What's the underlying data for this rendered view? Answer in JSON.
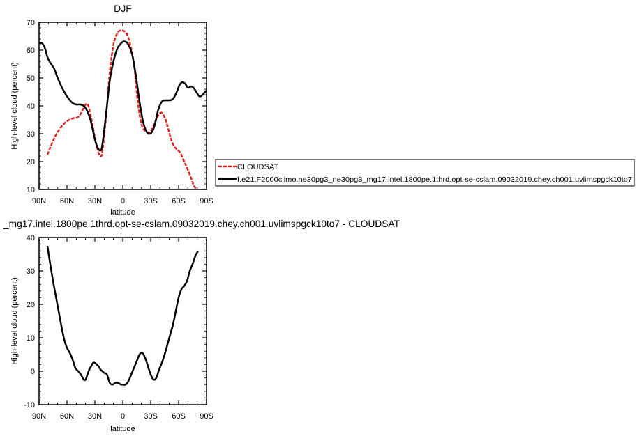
{
  "chart_data": [
    {
      "type": "line",
      "title": "DJF",
      "xlabel": "latitude",
      "ylabel": "High-level cloud (percent)",
      "xlim": [
        90,
        -90
      ],
      "ylim": [
        10,
        70
      ],
      "xticks": [
        90,
        60,
        30,
        0,
        -30,
        -60,
        -90
      ],
      "xtick_labels": [
        "90N",
        "60N",
        "30N",
        "0",
        "30S",
        "60S",
        "90S"
      ],
      "yticks": [
        10,
        20,
        30,
        40,
        50,
        60,
        70
      ],
      "ytick_labels": [
        "10",
        "20",
        "30",
        "40",
        "50",
        "60",
        "70"
      ],
      "legend_position": "right",
      "series": [
        {
          "name": "CLOUDSAT",
          "color": "#e8211c",
          "dash": "dashed",
          "x": [
            81,
            78,
            72,
            66,
            60,
            54,
            48,
            44,
            40,
            37,
            33,
            29,
            26,
            24,
            22,
            18,
            14,
            10,
            6,
            3,
            0,
            -4,
            -8,
            -12,
            -16,
            -20,
            -24,
            -28,
            -32,
            -35,
            -38,
            -42,
            -46,
            -49,
            -52,
            -55,
            -58,
            -62,
            -66,
            -70,
            -74,
            -77,
            -81
          ],
          "y": [
            22.5,
            25,
            29.5,
            32.5,
            34.5,
            35.5,
            36,
            38,
            40.5,
            40,
            34,
            27,
            23,
            22,
            23.5,
            36,
            52,
            62,
            66,
            67,
            67,
            66,
            62,
            55,
            42,
            33.5,
            31,
            30.5,
            32,
            34.5,
            36.5,
            37.5,
            35,
            31.5,
            28,
            25.5,
            24.5,
            23,
            20,
            17,
            13.5,
            11,
            9.5
          ]
        },
        {
          "name": "f.e21.F2000climo.ne30pg3_ne30pg3_mg17.intel.1800pe.1thrd.opt-se-cslam.09032019.chey.ch001.uvlimspgck10to7",
          "color": "#000000",
          "dash": "solid",
          "x": [
            90,
            87,
            84,
            81,
            78,
            74,
            70,
            66,
            62,
            58,
            54,
            50,
            46,
            42,
            38,
            34,
            30,
            27,
            24,
            22,
            18,
            14,
            10,
            6,
            3,
            0,
            -3,
            -6,
            -10,
            -14,
            -18,
            -22,
            -26,
            -29,
            -32,
            -35,
            -38,
            -42,
            -46,
            -50,
            -54,
            -58,
            -61,
            -64,
            -67,
            -70,
            -73,
            -76,
            -79,
            -82,
            -84,
            -87,
            -90
          ],
          "y": [
            62.5,
            62.5,
            61,
            57.5,
            55.5,
            53.5,
            50,
            47,
            44.5,
            42.5,
            41,
            40.5,
            40.5,
            40,
            38,
            34,
            28,
            25,
            24,
            26,
            37,
            49,
            56,
            60.5,
            62,
            63,
            63,
            62,
            58.5,
            51,
            41.5,
            34,
            30.5,
            30,
            31,
            34,
            38.5,
            41.5,
            42,
            42,
            42.5,
            45,
            47.5,
            48.5,
            48,
            46.5,
            47,
            46.5,
            45,
            43.5,
            43.5,
            44.5,
            45.5
          ]
        }
      ]
    },
    {
      "type": "line",
      "title": "_mg17.intel.1800pe.1thrd.opt-se-cslam.09032019.chey.ch001.uvlimspgck10to7 - CLOUDSAT",
      "xlabel": "latitude",
      "ylabel": "High-level cloud (percent)",
      "xlim": [
        90,
        -90
      ],
      "ylim": [
        -10,
        40
      ],
      "xticks": [
        90,
        60,
        30,
        0,
        -30,
        -60,
        -90
      ],
      "xtick_labels": [
        "90N",
        "60N",
        "30N",
        "0",
        "30S",
        "60S",
        "90S"
      ],
      "yticks": [
        -10,
        0,
        10,
        20,
        30,
        40
      ],
      "ytick_labels": [
        "-10",
        "0",
        "10",
        "20",
        "30",
        "40"
      ],
      "series": [
        {
          "color": "#000000",
          "dash": "solid",
          "x": [
            81,
            78,
            75,
            72,
            69,
            66,
            63,
            60,
            57,
            54,
            51,
            48,
            45,
            42,
            40,
            38,
            36,
            34,
            32,
            30,
            28,
            26,
            24,
            22,
            20,
            17,
            14,
            11,
            8,
            5,
            2,
            0,
            -3,
            -6,
            -9,
            -12,
            -15,
            -18,
            -21,
            -24,
            -27,
            -30,
            -33,
            -36,
            -39,
            -42,
            -45,
            -48,
            -51,
            -54,
            -57,
            -60,
            -63,
            -66,
            -69,
            -72,
            -75,
            -78,
            -81
          ],
          "y": [
            37.5,
            32,
            27,
            22.5,
            18,
            13.5,
            9.5,
            7,
            5.5,
            3.5,
            1,
            0,
            -1,
            -2.5,
            -2.5,
            -1,
            0.5,
            1.5,
            2.5,
            2.5,
            2,
            1.5,
            0.5,
            0,
            -0.5,
            -1,
            -3.5,
            -4,
            -3.5,
            -3.5,
            -4,
            -4,
            -4,
            -3,
            -1,
            1,
            3,
            5,
            5.5,
            4,
            1.5,
            -1,
            -2.5,
            -2,
            0.5,
            2.5,
            5,
            8,
            11,
            14,
            18,
            22,
            24.5,
            25.5,
            27,
            30,
            32,
            34.5,
            36
          ]
        }
      ]
    }
  ]
}
